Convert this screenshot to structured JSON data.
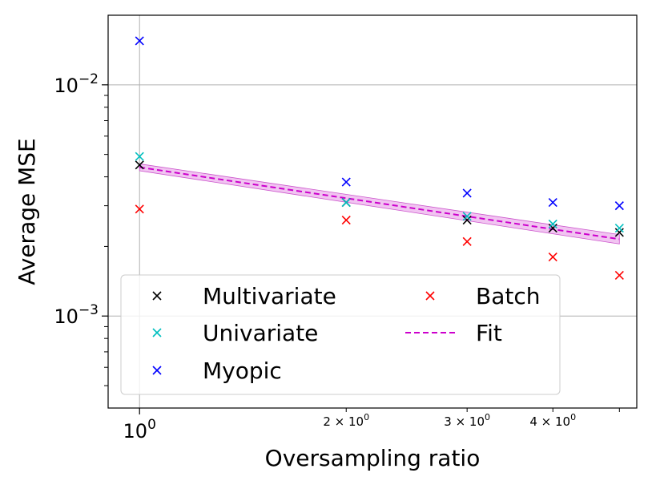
{
  "chart_data": {
    "type": "scatter",
    "title": "",
    "xlabel": "Oversampling ratio",
    "ylabel": "Average MSE",
    "xscale": "log",
    "yscale": "log",
    "xlim": [
      0.9,
      5.3
    ],
    "ylim": [
      0.0004,
      0.02
    ],
    "grid": true,
    "legend_location": "lower-left",
    "legend_columns": 2,
    "x_ticks": [
      {
        "value": 1,
        "base": "10",
        "exp": "0"
      },
      {
        "value": 2,
        "base": "2 × 10",
        "exp": "0"
      },
      {
        "value": 3,
        "base": "3 × 10",
        "exp": "0"
      },
      {
        "value": 4,
        "base": "4 × 10",
        "exp": "0"
      }
    ],
    "y_ticks": [
      {
        "value": 0.01,
        "base": "10",
        "exp": "−2"
      },
      {
        "value": 0.001,
        "base": "10",
        "exp": "−3"
      }
    ],
    "x": [
      1,
      2,
      3,
      4,
      5
    ],
    "series": [
      {
        "name": "Multivariate",
        "marker": "x",
        "color": "#000000",
        "values": [
          0.0045,
          0.0031,
          0.0026,
          0.0024,
          0.0023
        ]
      },
      {
        "name": "Univariate",
        "marker": "x",
        "color": "#00bfbf",
        "values": [
          0.0049,
          0.0031,
          0.0027,
          0.0025,
          0.0024
        ]
      },
      {
        "name": "Myopic",
        "marker": "x",
        "color": "#0000ff",
        "values": [
          0.0155,
          0.0038,
          0.0034,
          0.0031,
          0.003
        ]
      },
      {
        "name": "Batch",
        "marker": "x",
        "color": "#ff0000",
        "values": [
          0.0029,
          0.0026,
          0.0021,
          0.0018,
          0.0015
        ]
      }
    ],
    "fit": {
      "name": "Fit",
      "style": "dashed",
      "color": "#cc00cc",
      "band_color": "#e89ce8",
      "x": [
        1,
        5
      ],
      "values": [
        0.0044,
        0.00215
      ],
      "band_low": [
        0.00425,
        0.00205
      ],
      "band_high": [
        0.00455,
        0.00225
      ]
    }
  }
}
